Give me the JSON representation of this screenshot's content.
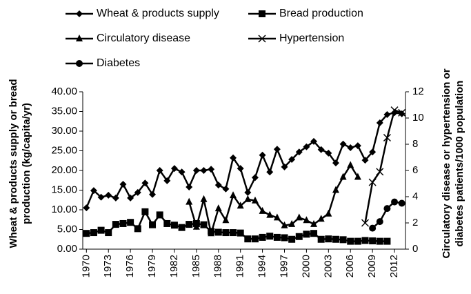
{
  "chart_data": {
    "type": "line",
    "ylabel": [
      "Wheat & products supply or bread",
      "production (kg/capita/yr)"
    ],
    "y2label": [
      "Circulatory disease or hypertension or",
      "diabetes patients/1000 population"
    ],
    "x": [
      1970,
      1971,
      1972,
      1973,
      1974,
      1975,
      1976,
      1977,
      1978,
      1979,
      1980,
      1981,
      1982,
      1983,
      1984,
      1985,
      1986,
      1987,
      1988,
      1989,
      1990,
      1991,
      1992,
      1993,
      1994,
      1995,
      1996,
      1997,
      1998,
      1999,
      2000,
      2001,
      2002,
      2003,
      2004,
      2005,
      2006,
      2007,
      2008,
      2009,
      2010,
      2011,
      2012,
      2013
    ],
    "xlim": [
      1969.5,
      2013.5
    ],
    "xticks": [
      1970,
      1973,
      1976,
      1979,
      1982,
      1985,
      1988,
      1991,
      1994,
      1997,
      2000,
      2003,
      2006,
      2009,
      2012
    ],
    "ylim": [
      0,
      40
    ],
    "yticks": [
      {
        "value": 0,
        "label": "0.00"
      },
      {
        "value": 5,
        "label": "5.00"
      },
      {
        "value": 10,
        "label": "10.00"
      },
      {
        "value": 15,
        "label": "15.00"
      },
      {
        "value": 20,
        "label": "20.00"
      },
      {
        "value": 25,
        "label": "25.00"
      },
      {
        "value": 30,
        "label": "30.00"
      },
      {
        "value": 35,
        "label": "35.00"
      },
      {
        "value": 40,
        "label": "40.00"
      }
    ],
    "y2lim": [
      0,
      12
    ],
    "y2ticks": [
      0,
      2,
      4,
      6,
      8,
      10,
      12
    ],
    "series": [
      {
        "name": "Wheat & products supply",
        "color": "#000000",
        "marker": "diamond",
        "values": [
          10.5,
          14.9,
          13.2,
          13.7,
          13,
          16.5,
          13,
          14.4,
          16.8,
          13.9,
          20,
          17.4,
          20.5,
          19.6,
          15.8,
          20,
          20,
          20.3,
          16.3,
          15.3,
          23.2,
          20.5,
          14.4,
          18.2,
          23.9,
          19.6,
          25.4,
          20.9,
          22.8,
          24.7,
          26,
          27.4,
          25.3,
          24.4,
          21.9,
          26.7,
          25.8,
          26.3,
          22.6,
          24.7,
          32.1,
          34.2,
          34.7,
          34.4
        ]
      },
      {
        "name": "Bread production",
        "color": "#000000",
        "marker": "square",
        "values": [
          4,
          4.2,
          4.8,
          4.2,
          6.3,
          6.5,
          6.8,
          5.2,
          9.5,
          6.2,
          8.7,
          6.5,
          6.1,
          5.5,
          6.3,
          6.5,
          6.2,
          4.5,
          4.3,
          4.2,
          4.2,
          4.1,
          2.6,
          2.6,
          3,
          3.3,
          3,
          2.9,
          2.5,
          3.2,
          3.8,
          4,
          2.5,
          2.6,
          2.5,
          2.4,
          2,
          2,
          2.2,
          2.1,
          2,
          2,
          null,
          null
        ]
      },
      {
        "name": "Circulatory disease",
        "color": "#000000",
        "marker": "triangle",
        "axis": "y2",
        "values": [
          null,
          null,
          null,
          null,
          null,
          null,
          null,
          null,
          null,
          null,
          null,
          null,
          null,
          null,
          3.6,
          1.7,
          3.8,
          1.2,
          3.1,
          2.2,
          4.1,
          3.3,
          3.8,
          3.7,
          2.9,
          2.6,
          2.4,
          1.8,
          1.9,
          2.4,
          2.2,
          1.9,
          2.3,
          2.7,
          4.5,
          5.5,
          6.4,
          5.5,
          null,
          null,
          null,
          null,
          null,
          null
        ]
      },
      {
        "name": "Hypertension",
        "color": "#000000",
        "marker": "x",
        "axis": "y2",
        "values": [
          null,
          null,
          null,
          null,
          null,
          null,
          null,
          null,
          null,
          null,
          null,
          null,
          null,
          null,
          null,
          null,
          null,
          null,
          null,
          null,
          null,
          null,
          null,
          null,
          null,
          null,
          null,
          null,
          null,
          null,
          null,
          null,
          null,
          null,
          null,
          null,
          null,
          null,
          2,
          5.1,
          5.9,
          8.5,
          10.6,
          10.4
        ]
      },
      {
        "name": "Diabetes",
        "color": "#000000",
        "marker": "circle",
        "axis": "y2",
        "values": [
          null,
          null,
          null,
          null,
          null,
          null,
          null,
          null,
          null,
          null,
          null,
          null,
          null,
          null,
          null,
          null,
          null,
          null,
          null,
          null,
          null,
          null,
          null,
          null,
          null,
          null,
          null,
          null,
          null,
          null,
          null,
          null,
          null,
          null,
          null,
          null,
          null,
          null,
          null,
          1.6,
          2.1,
          3.1,
          3.6,
          3.5
        ]
      }
    ]
  }
}
